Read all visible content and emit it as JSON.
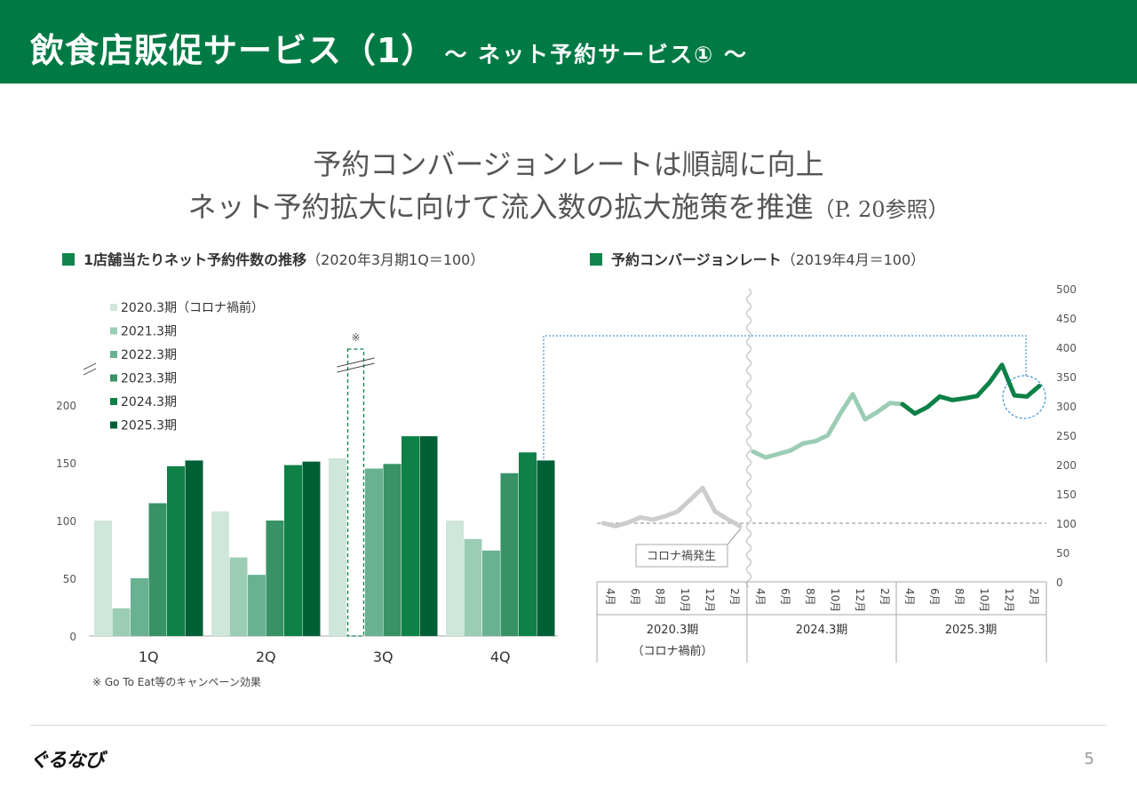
{
  "header": {
    "title": "飲食店販促サービス（1）",
    "subtitle": "～ ネット予約サービス① ～"
  },
  "headline": {
    "line1": "予約コンバージョンレートは順調に向上",
    "line2": "ネット予約拡大に向けて流入数の拡大施策を推進",
    "ref": "（P. 20参照）"
  },
  "legend_left": {
    "label": "1店舗当たりネット予約件数の推移",
    "note": "（2020年3月期1Q＝100）"
  },
  "legend_right": {
    "label": "予約コンバージョンレート",
    "note": "（2019年4月＝100）"
  },
  "colors": {
    "brand": "#007a45",
    "fy2020": "#cfe6da",
    "fy2021": "#9bcdb4",
    "fy2022": "#68b291",
    "fy2023": "#379266",
    "fy2024": "#0d8146",
    "fy2025": "#006035",
    "line_pre": "#cccccc",
    "line_2024": "#9bcdb4",
    "line_2025": "#0d8146"
  },
  "chart_data": [
    {
      "type": "bar",
      "categories": [
        "1Q",
        "2Q",
        "3Q",
        "4Q"
      ],
      "series": [
        {
          "name": "2020.3期（コロナ禍前）",
          "values": [
            100,
            108,
            154,
            100
          ]
        },
        {
          "name": "2021.3期",
          "values": [
            24,
            68,
            null,
            84
          ]
        },
        {
          "name": "2022.3期",
          "values": [
            50,
            53,
            145,
            74
          ]
        },
        {
          "name": "2023.3期",
          "values": [
            115,
            100,
            149,
            141
          ]
        },
        {
          "name": "2024.3期",
          "values": [
            147,
            148,
            173,
            159
          ]
        },
        {
          "name": "2025.3期",
          "values": [
            152,
            151,
            173,
            152
          ]
        }
      ],
      "yticks": [
        "0",
        "50",
        "100",
        "150",
        "200"
      ],
      "ylim": [
        0,
        200
      ],
      "break_mark": "※",
      "footnote": "※ Go To Eat等のキャンペーン効果"
    },
    {
      "type": "line",
      "x_ticks": [
        "4月",
        "6月",
        "8月",
        "10月",
        "12月",
        "2月"
      ],
      "groups": [
        {
          "name": "2020.3期",
          "sub": "（コロナ禍前）"
        },
        {
          "name": "2024.3期",
          "sub": ""
        },
        {
          "name": "2025.3期",
          "sub": ""
        }
      ],
      "series": [
        {
          "name": "2020.3期",
          "values": [
            100,
            95,
            101,
            110,
            106,
            112,
            120,
            140,
            160,
            120,
            107,
            95
          ]
        },
        {
          "name": "2024.3期",
          "values": [
            222,
            212,
            218,
            224,
            236,
            240,
            250,
            287,
            320,
            277,
            290,
            305,
            303
          ]
        },
        {
          "name": "2025.3期",
          "values": [
            303,
            287,
            298,
            316,
            310,
            313,
            317,
            340,
            370,
            318,
            316,
            334
          ]
        }
      ],
      "yticks": [
        "0",
        "50",
        "100",
        "150",
        "200",
        "250",
        "300",
        "350",
        "400",
        "450",
        "500"
      ],
      "ylim": [
        0,
        500
      ],
      "reference_line": 100,
      "annotation": "コロナ禍発生"
    }
  ],
  "footer": {
    "logo": "ぐるなび",
    "page": "5"
  }
}
